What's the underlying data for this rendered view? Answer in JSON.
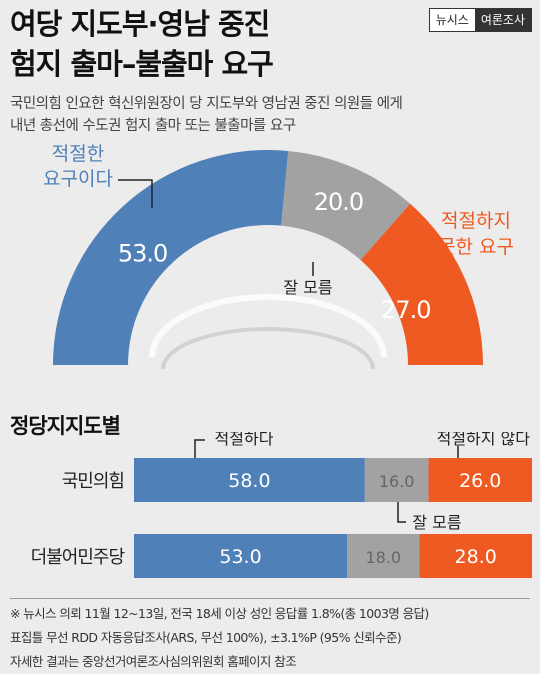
{
  "header": {
    "title_line1": "여당 지도부·영남 중진",
    "title_line2": "험지 출마–불출마 요구",
    "logo_left": "뉴시스",
    "logo_right": "여론조사"
  },
  "subtitle": {
    "line1": "국민의힘 인요한 혁신위원장이 당 지도부와 영남권 중진 의원들 에게",
    "line2": "내년 총선에 수도권 험지 출마 또는 불출마를 요구"
  },
  "colors": {
    "blue": "#4f80b7",
    "gray": "#a2a2a2",
    "orange": "#ee5a22",
    "background": "#ececec"
  },
  "chart_data": [
    {
      "type": "pie",
      "style": "half-donut",
      "categories": [
        "적절한 요구이다",
        "잘 모름",
        "적절하지 못한 요구"
      ],
      "values": [
        53.0,
        20.0,
        27.0
      ],
      "labels": {
        "appropriate_line1": "적절한",
        "appropriate_line2": "요구이다",
        "dontknow": "잘 모름",
        "inappropriate_line1": "적절하지",
        "inappropriate_line2": "못한 요구"
      }
    },
    {
      "type": "bar",
      "orientation": "horizontal-stacked",
      "title": "정당지지도별",
      "categories": [
        "국민의힘",
        "더불어민주당"
      ],
      "series": [
        {
          "name": "적절하다",
          "values": [
            58.0,
            53.0
          ]
        },
        {
          "name": "잘 모름",
          "values": [
            16.0,
            18.0
          ]
        },
        {
          "name": "적절하지 않다",
          "values": [
            26.0,
            28.0
          ]
        }
      ]
    }
  ],
  "footnote": {
    "line1": "※ 뉴시스 의뢰 11월 12~13일, 전국 18세 이상 성인 응답률 1.8%(총 1003명 응답)",
    "line2": "표집틀 무선 RDD 자동응답조사(ARS, 무선 100%), ±3.1%P (95% 신뢰수준)",
    "line3": "자세한 결과는 중앙선거여론조사심의위원회 홈페이지 참조"
  }
}
